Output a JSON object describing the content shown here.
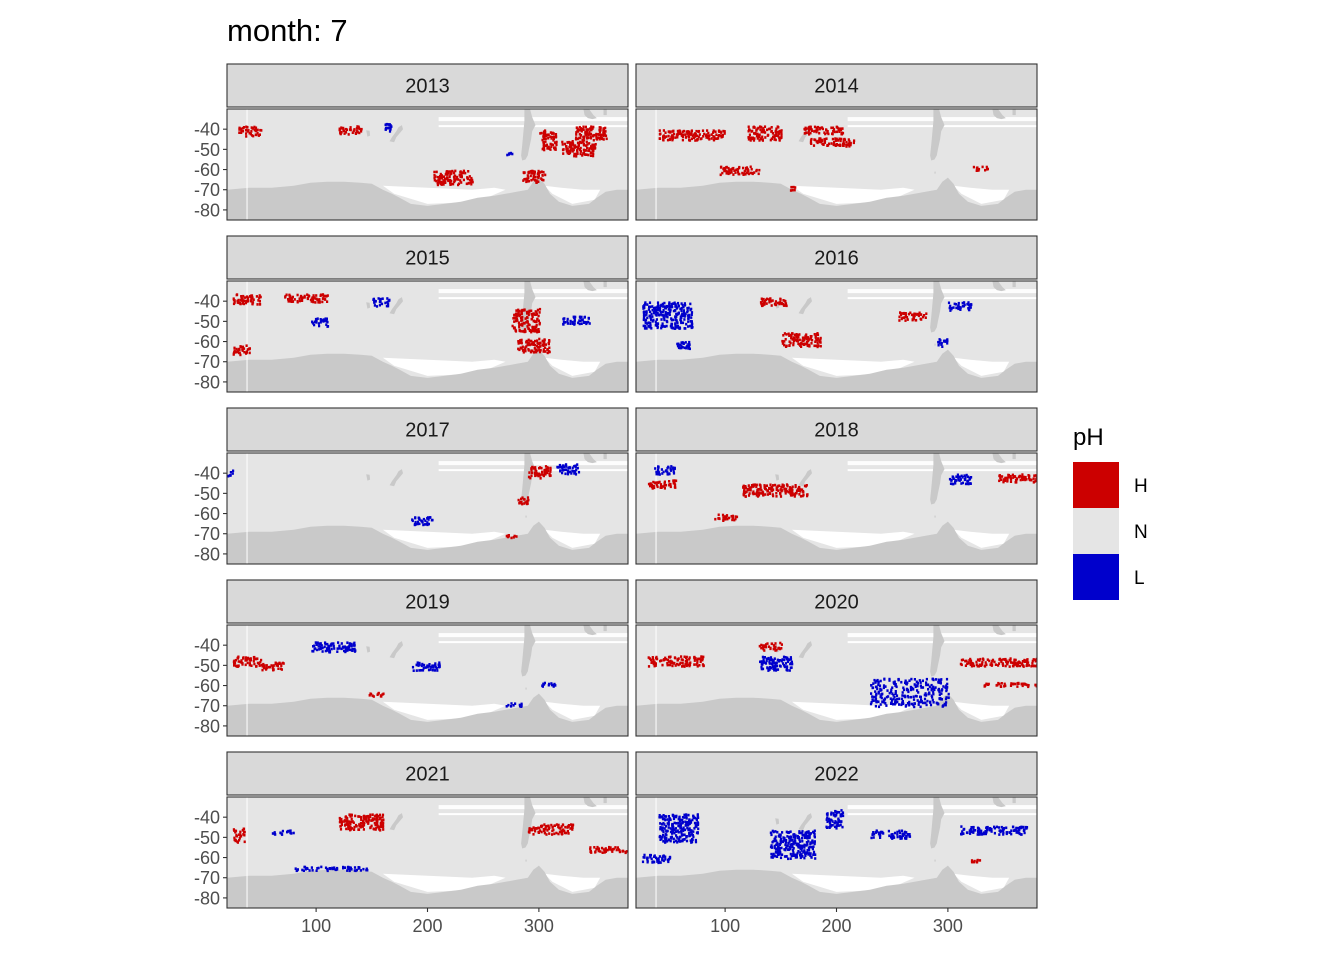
{
  "figure": {
    "title": "month: 7"
  },
  "legend": {
    "title": "pH",
    "position": "right",
    "items": [
      {
        "label": "H",
        "color": "#CC0000"
      },
      {
        "label": "N",
        "color": "#E5E5E5"
      },
      {
        "label": "L",
        "color": "#0000CC"
      }
    ]
  },
  "colors": {
    "land": "#C9C9C9",
    "strip": "#D9D9D9",
    "H": "#CC0000",
    "N": "#E5E5E5",
    "L": "#0000CC"
  },
  "chart_data": {
    "type": "heatmap",
    "facet_by": "year",
    "facet_layout": "5 rows x 2 columns",
    "xlim": [
      20,
      380
    ],
    "ylim": [
      -85,
      -30
    ],
    "x_ticks": [
      100,
      200,
      300
    ],
    "x_tick_labels": [
      "100",
      "200",
      "300"
    ],
    "y_ticks": [
      -40,
      -50,
      -60,
      -70,
      -80
    ],
    "y_tick_labels": [
      "-40",
      "-50",
      "-60",
      "-70",
      "-80"
    ],
    "categories": [
      "H",
      "N",
      "L"
    ],
    "panels": [
      {
        "label": "2013",
        "regions": [
          {
            "cat": "H",
            "x": [
              205,
              240
            ],
            "y": [
              -67,
              -60
            ]
          },
          {
            "cat": "H",
            "x": [
              320,
              350
            ],
            "y": [
              -53,
              -45
            ]
          },
          {
            "cat": "H",
            "x": [
              330,
              360
            ],
            "y": [
              -45,
              -38
            ]
          },
          {
            "cat": "H",
            "x": [
              285,
              305
            ],
            "y": [
              -66,
              -60
            ]
          },
          {
            "cat": "H",
            "x": [
              300,
              315
            ],
            "y": [
              -50,
              -40
            ]
          },
          {
            "cat": "H",
            "x": [
              120,
              140
            ],
            "y": [
              -42,
              -38
            ]
          },
          {
            "cat": "H",
            "x": [
              30,
              50
            ],
            "y": [
              -43,
              -38
            ]
          },
          {
            "cat": "L",
            "x": [
              160,
              168
            ],
            "y": [
              -41,
              -36
            ]
          },
          {
            "cat": "L",
            "x": [
              270,
              276
            ],
            "y": [
              -53,
              -51
            ]
          }
        ]
      },
      {
        "label": "2014",
        "regions": [
          {
            "cat": "H",
            "x": [
              95,
              130
            ],
            "y": [
              -62,
              -58
            ]
          },
          {
            "cat": "H",
            "x": [
              175,
              215
            ],
            "y": [
              -48,
              -44
            ]
          },
          {
            "cat": "H",
            "x": [
              170,
              205
            ],
            "y": [
              -42,
              -38
            ]
          },
          {
            "cat": "H",
            "x": [
              40,
              100
            ],
            "y": [
              -45,
              -40
            ]
          },
          {
            "cat": "H",
            "x": [
              120,
              150
            ],
            "y": [
              -45,
              -38
            ]
          },
          {
            "cat": "H",
            "x": [
              320,
              335
            ],
            "y": [
              -60,
              -58
            ]
          },
          {
            "cat": "H",
            "x": [
              158,
              162
            ],
            "y": [
              -70,
              -68
            ]
          }
        ]
      },
      {
        "label": "2015",
        "regions": [
          {
            "cat": "H",
            "x": [
              25,
              40
            ],
            "y": [
              -66,
              -61
            ]
          },
          {
            "cat": "H",
            "x": [
              25,
              50
            ],
            "y": [
              -41,
              -36
            ]
          },
          {
            "cat": "H",
            "x": [
              275,
              300
            ],
            "y": [
              -55,
              -43
            ]
          },
          {
            "cat": "H",
            "x": [
              280,
              310
            ],
            "y": [
              -65,
              -58
            ]
          },
          {
            "cat": "H",
            "x": [
              70,
              110
            ],
            "y": [
              -40,
              -36
            ]
          },
          {
            "cat": "L",
            "x": [
              320,
              345
            ],
            "y": [
              -51,
              -47
            ]
          },
          {
            "cat": "L",
            "x": [
              95,
              110
            ],
            "y": [
              -52,
              -48
            ]
          },
          {
            "cat": "L",
            "x": [
              150,
              165
            ],
            "y": [
              -42,
              -38
            ]
          }
        ]
      },
      {
        "label": "2016",
        "regions": [
          {
            "cat": "H",
            "x": [
              150,
              185
            ],
            "y": [
              -62,
              -55
            ]
          },
          {
            "cat": "H",
            "x": [
              255,
              280
            ],
            "y": [
              -49,
              -45
            ]
          },
          {
            "cat": "H",
            "x": [
              130,
              155
            ],
            "y": [
              -42,
              -38
            ]
          },
          {
            "cat": "L",
            "x": [
              25,
              70
            ],
            "y": [
              -53,
              -40
            ]
          },
          {
            "cat": "L",
            "x": [
              55,
              70
            ],
            "y": [
              -63,
              -59
            ]
          },
          {
            "cat": "L",
            "x": [
              300,
              320
            ],
            "y": [
              -44,
              -40
            ]
          },
          {
            "cat": "L",
            "x": [
              290,
              300
            ],
            "y": [
              -62,
              -58
            ]
          }
        ]
      },
      {
        "label": "2017",
        "regions": [
          {
            "cat": "L",
            "x": [
              185,
              205
            ],
            "y": [
              -65,
              -61
            ]
          },
          {
            "cat": "L",
            "x": [
              315,
              335
            ],
            "y": [
              -40,
              -35
            ]
          },
          {
            "cat": "H",
            "x": [
              290,
              310
            ],
            "y": [
              -42,
              -36
            ]
          },
          {
            "cat": "H",
            "x": [
              280,
              290
            ],
            "y": [
              -55,
              -51
            ]
          },
          {
            "cat": "H",
            "x": [
              270,
              280
            ],
            "y": [
              -72,
              -70
            ]
          },
          {
            "cat": "L",
            "x": [
              20,
              25
            ],
            "y": [
              -41,
              -38
            ]
          }
        ]
      },
      {
        "label": "2018",
        "regions": [
          {
            "cat": "H",
            "x": [
              115,
              175
            ],
            "y": [
              -51,
              -45
            ]
          },
          {
            "cat": "H",
            "x": [
              30,
              55
            ],
            "y": [
              -47,
              -43
            ]
          },
          {
            "cat": "H",
            "x": [
              90,
              110
            ],
            "y": [
              -63,
              -60
            ]
          },
          {
            "cat": "H",
            "x": [
              345,
              380
            ],
            "y": [
              -44,
              -40
            ]
          },
          {
            "cat": "L",
            "x": [
              35,
              55
            ],
            "y": [
              -40,
              -36
            ]
          },
          {
            "cat": "L",
            "x": [
              300,
              320
            ],
            "y": [
              -45,
              -40
            ]
          }
        ]
      },
      {
        "label": "2019",
        "regions": [
          {
            "cat": "H",
            "x": [
              25,
              50
            ],
            "y": [
              -50,
              -45
            ]
          },
          {
            "cat": "H",
            "x": [
              50,
              70
            ],
            "y": [
              -52,
              -48
            ]
          },
          {
            "cat": "H",
            "x": [
              145,
              160
            ],
            "y": [
              -65,
              -63
            ]
          },
          {
            "cat": "L",
            "x": [
              95,
              135
            ],
            "y": [
              -43,
              -38
            ]
          },
          {
            "cat": "L",
            "x": [
              185,
              210
            ],
            "y": [
              -52,
              -48
            ]
          },
          {
            "cat": "L",
            "x": [
              300,
              315
            ],
            "y": [
              -60,
              -58
            ]
          },
          {
            "cat": "L",
            "x": [
              270,
              285
            ],
            "y": [
              -70,
              -68
            ]
          }
        ]
      },
      {
        "label": "2020",
        "regions": [
          {
            "cat": "L",
            "x": [
              230,
              300
            ],
            "y": [
              -70,
              -56
            ]
          },
          {
            "cat": "L",
            "x": [
              130,
              160
            ],
            "y": [
              -52,
              -45
            ]
          },
          {
            "cat": "H",
            "x": [
              30,
              80
            ],
            "y": [
              -50,
              -45
            ]
          },
          {
            "cat": "H",
            "x": [
              330,
              380
            ],
            "y": [
              -60,
              -58
            ]
          },
          {
            "cat": "H",
            "x": [
              310,
              380
            ],
            "y": [
              -50,
              -46
            ]
          },
          {
            "cat": "H",
            "x": [
              130,
              150
            ],
            "y": [
              -42,
              -38
            ]
          }
        ]
      },
      {
        "label": "2021",
        "regions": [
          {
            "cat": "H",
            "x": [
              120,
              160
            ],
            "y": [
              -46,
              -38
            ]
          },
          {
            "cat": "H",
            "x": [
              290,
              330
            ],
            "y": [
              -48,
              -43
            ]
          },
          {
            "cat": "H",
            "x": [
              345,
              380
            ],
            "y": [
              -57,
              -54
            ]
          },
          {
            "cat": "H",
            "x": [
              25,
              35
            ],
            "y": [
              -52,
              -45
            ]
          },
          {
            "cat": "L",
            "x": [
              80,
              145
            ],
            "y": [
              -66,
              -64
            ]
          },
          {
            "cat": "L",
            "x": [
              60,
              80
            ],
            "y": [
              -48,
              -46
            ]
          }
        ]
      },
      {
        "label": "2022",
        "regions": [
          {
            "cat": "L",
            "x": [
              140,
              180
            ],
            "y": [
              -60,
              -46
            ]
          },
          {
            "cat": "L",
            "x": [
              190,
              205
            ],
            "y": [
              -45,
              -36
            ]
          },
          {
            "cat": "L",
            "x": [
              230,
              265
            ],
            "y": [
              -50,
              -46
            ]
          },
          {
            "cat": "L",
            "x": [
              40,
              75
            ],
            "y": [
              -52,
              -38
            ]
          },
          {
            "cat": "L",
            "x": [
              310,
              370
            ],
            "y": [
              -48,
              -44
            ]
          },
          {
            "cat": "L",
            "x": [
              25,
              50
            ],
            "y": [
              -62,
              -58
            ]
          },
          {
            "cat": "H",
            "x": [
              320,
              330
            ],
            "y": [
              -62,
              -60
            ]
          }
        ]
      }
    ]
  }
}
